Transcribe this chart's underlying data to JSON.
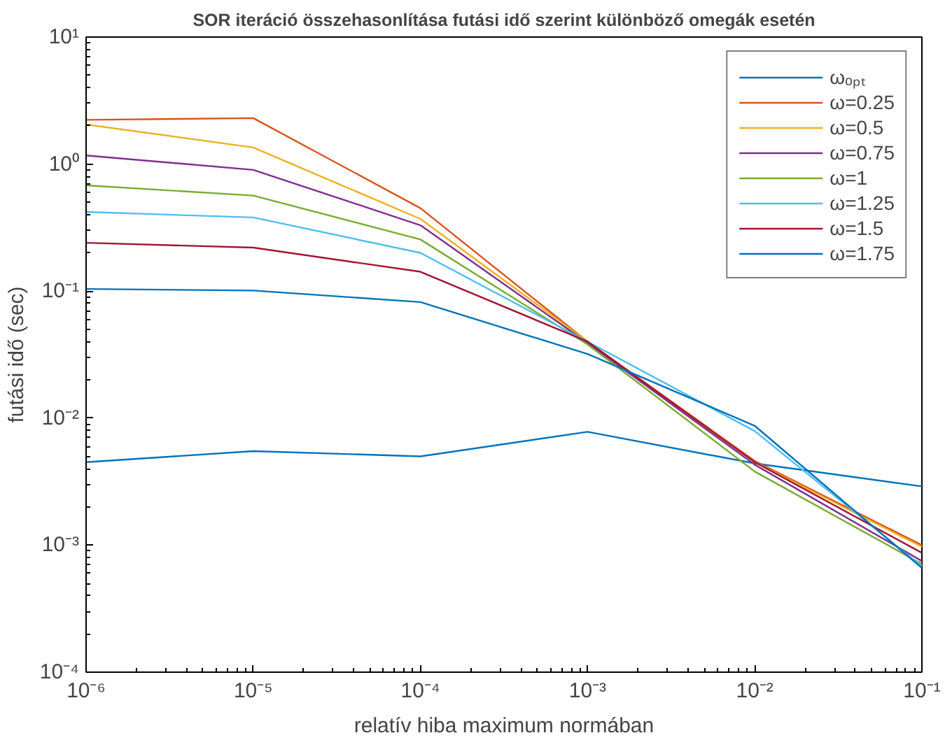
{
  "chart_data": {
    "type": "line",
    "title": "SOR iteráció összehasonlítása futási idő szerint különböző omegák esetén",
    "xlabel": "relatív hiba maximum normában",
    "ylabel": "futási idő (sec)",
    "x": [
      1e-06,
      1e-05,
      0.0001,
      0.001,
      0.01,
      0.1
    ],
    "series": [
      {
        "name": "ωₒₚₜ",
        "color": "#0072bd",
        "values": [
          0.0045,
          0.0055,
          0.005,
          0.0078,
          0.0044,
          0.0029
        ]
      },
      {
        "name": "ω=0.25",
        "color": "#d95319",
        "values": [
          2.23,
          2.3,
          0.45,
          0.04,
          0.0046,
          0.001
        ]
      },
      {
        "name": "ω=0.5",
        "color": "#edb120",
        "values": [
          2.05,
          1.35,
          0.37,
          0.04,
          0.0045,
          0.00097
        ]
      },
      {
        "name": "ω=0.75",
        "color": "#7e2f8e",
        "values": [
          1.17,
          0.9,
          0.33,
          0.039,
          0.0043,
          0.00075
        ]
      },
      {
        "name": "ω=1",
        "color": "#77ac30",
        "values": [
          0.68,
          0.565,
          0.255,
          0.038,
          0.0038,
          0.00071
        ]
      },
      {
        "name": "ω=1.25",
        "color": "#4dbeee",
        "values": [
          0.42,
          0.38,
          0.2,
          0.04,
          0.0079,
          0.00068
        ]
      },
      {
        "name": "ω=1.5",
        "color": "#a2142f",
        "values": [
          0.24,
          0.22,
          0.142,
          0.04,
          0.0045,
          0.00087
        ]
      },
      {
        "name": "ω=1.75",
        "color": "#0072bd",
        "values": [
          0.104,
          0.101,
          0.082,
          0.032,
          0.0087,
          0.00066
        ]
      }
    ],
    "log": "xy",
    "xlim": [
      1e-06,
      0.1
    ],
    "ylim": [
      0.0001,
      10
    ],
    "xticks": [
      {
        "value": 1e-06,
        "label": "10⁻⁶"
      },
      {
        "value": 1e-05,
        "label": "10⁻⁵"
      },
      {
        "value": 0.0001,
        "label": "10⁻⁴"
      },
      {
        "value": 0.001,
        "label": "10⁻³"
      },
      {
        "value": 0.01,
        "label": "10⁻²"
      },
      {
        "value": 0.1,
        "label": "10⁻¹"
      }
    ],
    "yticks": [
      {
        "value": 0.0001,
        "label": "10⁻⁴"
      },
      {
        "value": 0.001,
        "label": "10⁻³"
      },
      {
        "value": 0.01,
        "label": "10⁻²"
      },
      {
        "value": 0.1,
        "label": "10⁻¹"
      },
      {
        "value": 1,
        "label": "10⁰"
      },
      {
        "value": 10,
        "label": "10¹"
      }
    ],
    "grid": false,
    "legend": "top right",
    "marker": "none",
    "line_style": "solid"
  }
}
